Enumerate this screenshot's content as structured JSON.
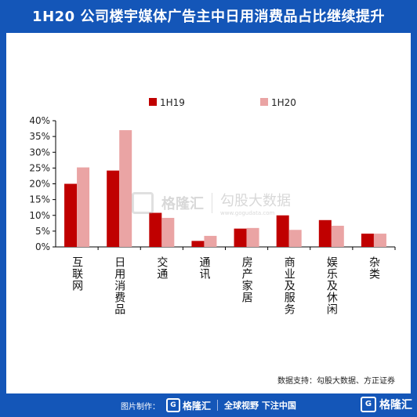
{
  "title": "1H20 公司楼宇媒体广告主中日用消费品占比继续提升",
  "chart_data": {
    "type": "bar",
    "categories": [
      "互联网",
      "日用消费品",
      "交通",
      "通讯",
      "房产家居",
      "商业及服务",
      "娱乐及休闲",
      "杂类"
    ],
    "series": [
      {
        "name": "1H19",
        "color": "#c00000",
        "values": [
          20.0,
          24.2,
          10.8,
          1.9,
          5.8,
          10.0,
          8.5,
          4.2
        ]
      },
      {
        "name": "1H20",
        "color": "#eaa4a4",
        "values": [
          25.2,
          37.0,
          9.2,
          3.5,
          6.0,
          5.4,
          6.7,
          4.2
        ]
      }
    ],
    "ylim": [
      0,
      40
    ],
    "yticks": [
      "0%",
      "5%",
      "10%",
      "15%",
      "20%",
      "25%",
      "30%",
      "35%",
      "40%"
    ],
    "legend": "top",
    "grid": false
  },
  "source": "数据支持：勾股大数据、方正证券",
  "watermark": {
    "brand": "格隆汇",
    "partner": "勾股大数据",
    "site": "www.gogudata.com"
  },
  "footer": {
    "made_label": "图片制作：",
    "brand": "格隆汇",
    "slogan": "全球视野 下注中国"
  },
  "corner_brand": "格隆汇"
}
